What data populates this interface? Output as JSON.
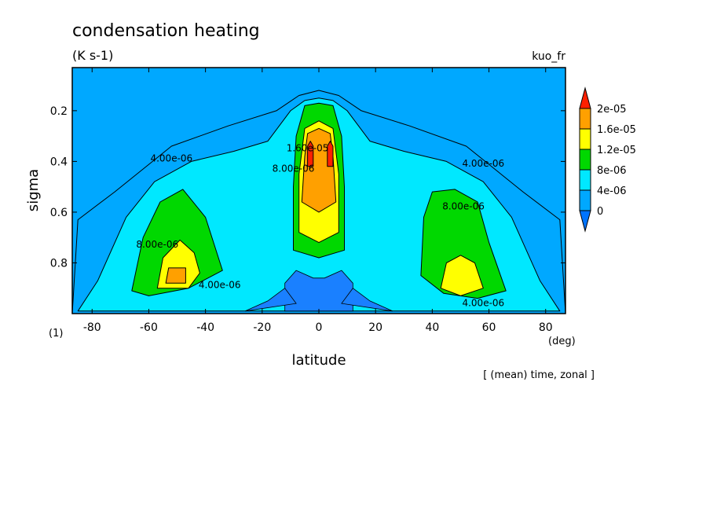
{
  "chart_data": {
    "type": "heatmap",
    "title": "condensation heating",
    "units": "(K s-1)",
    "variable_name": "kuo_fr",
    "xlabel": "latitude",
    "x_units": "(deg)",
    "ylabel": "sigma",
    "y_units": "(1)",
    "subtitle": "[ (mean) time, zonal ]",
    "xlim": [
      -87,
      87
    ],
    "ylim": [
      1.0,
      0.03
    ],
    "x_ticks": [
      -80,
      -60,
      -40,
      -20,
      0,
      20,
      40,
      60,
      80
    ],
    "y_ticks": [
      0.2,
      0.4,
      0.6,
      0.8
    ],
    "x_tick_labels": [
      "-80",
      "-60",
      "-40",
      "-20",
      "0",
      "20",
      "40",
      "60",
      "80"
    ],
    "y_tick_labels": [
      "0.2",
      "0.4",
      "0.6",
      "0.8"
    ],
    "colorbar": {
      "labels": [
        "2e-05",
        "1.6e-05",
        "1.2e-05",
        "8e-06",
        "4e-06",
        "0"
      ],
      "levels": [
        0,
        4e-06,
        8e-06,
        1.2e-05,
        1.6e-05,
        2e-05
      ],
      "colors": [
        "#0074ff",
        "#00a8ff",
        "#00e8ff",
        "#00d800",
        "#ffff00",
        "#ffa000",
        "#ff2000"
      ]
    },
    "contour_labels": [
      {
        "text": "4.00e-06",
        "x": -52,
        "y": 0.4
      },
      {
        "text": "8.00e-06",
        "x": -57,
        "y": 0.74
      },
      {
        "text": "4.00e-06",
        "x": -35,
        "y": 0.9
      },
      {
        "text": "8.00e-06",
        "x": -9,
        "y": 0.44
      },
      {
        "text": "1.60e-05",
        "x": -4,
        "y": 0.36
      },
      {
        "text": "4.00e-06",
        "x": 58,
        "y": 0.42
      },
      {
        "text": "8.00e-06",
        "x": 51,
        "y": 0.59
      },
      {
        "text": "4.00e-06",
        "x": 58,
        "y": 0.97
      }
    ],
    "regions": [
      {
        "level": "0-4e-06",
        "outline": [
          [
            -87,
            1.0
          ],
          [
            -85,
            0.63
          ],
          [
            -72,
            0.52
          ],
          [
            -52,
            0.34
          ],
          [
            -32,
            0.26
          ],
          [
            -15,
            0.2
          ],
          [
            -7,
            0.14
          ],
          [
            0,
            0.12
          ],
          [
            7,
            0.14
          ],
          [
            15,
            0.2
          ],
          [
            32,
            0.26
          ],
          [
            52,
            0.34
          ],
          [
            72,
            0.52
          ],
          [
            85,
            0.63
          ],
          [
            87,
            1.0
          ]
        ]
      },
      {
        "level": "4e-06-8e-06",
        "outline": [
          [
            -85,
            0.99
          ],
          [
            -78,
            0.87
          ],
          [
            -68,
            0.62
          ],
          [
            -58,
            0.48
          ],
          [
            -45,
            0.4
          ],
          [
            -30,
            0.36
          ],
          [
            -18,
            0.32
          ],
          [
            -10,
            0.2
          ],
          [
            -5,
            0.16
          ],
          [
            0,
            0.15
          ],
          [
            5,
            0.16
          ],
          [
            10,
            0.2
          ],
          [
            18,
            0.32
          ],
          [
            30,
            0.36
          ],
          [
            45,
            0.4
          ],
          [
            58,
            0.48
          ],
          [
            68,
            0.62
          ],
          [
            78,
            0.87
          ],
          [
            85,
            0.99
          ]
        ]
      },
      {
        "level": "8e-06-1.2e-05",
        "outline": [
          [
            -66,
            0.91
          ],
          [
            -62,
            0.7
          ],
          [
            -56,
            0.56
          ],
          [
            -48,
            0.51
          ],
          [
            -40,
            0.62
          ],
          [
            -34,
            0.83
          ],
          [
            -46,
            0.9
          ],
          [
            -60,
            0.93
          ]
        ]
      },
      {
        "level": "8e-06-1.2e-05",
        "outline": [
          [
            -9,
            0.75
          ],
          [
            -9,
            0.5
          ],
          [
            -8,
            0.3
          ],
          [
            -5,
            0.18
          ],
          [
            0,
            0.17
          ],
          [
            5,
            0.18
          ],
          [
            8,
            0.3
          ],
          [
            9,
            0.5
          ],
          [
            9,
            0.75
          ],
          [
            0,
            0.78
          ]
        ]
      },
      {
        "level": "8e-06-1.2e-05",
        "outline": [
          [
            36,
            0.85
          ],
          [
            37,
            0.62
          ],
          [
            40,
            0.52
          ],
          [
            48,
            0.51
          ],
          [
            56,
            0.56
          ],
          [
            60,
            0.72
          ],
          [
            66,
            0.91
          ],
          [
            56,
            0.94
          ],
          [
            44,
            0.92
          ]
        ]
      },
      {
        "level": "1.2e-05-1.6e-05",
        "outline": [
          [
            -57,
            0.9
          ],
          [
            -55,
            0.78
          ],
          [
            -49,
            0.71
          ],
          [
            -44,
            0.76
          ],
          [
            -42,
            0.84
          ],
          [
            -46,
            0.9
          ]
        ]
      },
      {
        "level": "1.2e-05-1.6e-05",
        "outline": [
          [
            -7,
            0.68
          ],
          [
            -7,
            0.45
          ],
          [
            -5,
            0.27
          ],
          [
            0,
            0.24
          ],
          [
            5,
            0.27
          ],
          [
            7,
            0.45
          ],
          [
            7,
            0.68
          ],
          [
            0,
            0.72
          ]
        ]
      },
      {
        "level": "1.2e-05-1.6e-05",
        "outline": [
          [
            43,
            0.9
          ],
          [
            45,
            0.8
          ],
          [
            50,
            0.77
          ],
          [
            55,
            0.8
          ],
          [
            58,
            0.9
          ],
          [
            50,
            0.93
          ]
        ]
      },
      {
        "level": "1.6e-05-2e-05",
        "outline": [
          [
            -54,
            0.88
          ],
          [
            -53,
            0.82
          ],
          [
            -47,
            0.82
          ],
          [
            -47,
            0.88
          ]
        ]
      },
      {
        "level": "1.6e-05-2e-05",
        "outline": [
          [
            -6,
            0.56
          ],
          [
            -5,
            0.38
          ],
          [
            -4,
            0.29
          ],
          [
            0,
            0.27
          ],
          [
            4,
            0.29
          ],
          [
            5,
            0.38
          ],
          [
            6,
            0.56
          ],
          [
            0,
            0.6
          ]
        ]
      },
      {
        "level": ">2e-05",
        "outline": [
          [
            -4,
            0.42
          ],
          [
            -4,
            0.34
          ],
          [
            -3,
            0.32
          ],
          [
            -2,
            0.34
          ],
          [
            -2,
            0.42
          ]
        ]
      },
      {
        "level": ">2e-05",
        "outline": [
          [
            3,
            0.42
          ],
          [
            3,
            0.34
          ],
          [
            4,
            0.32
          ],
          [
            5,
            0.34
          ],
          [
            5,
            0.42
          ]
        ]
      }
    ],
    "grid": false,
    "legend": "right"
  }
}
